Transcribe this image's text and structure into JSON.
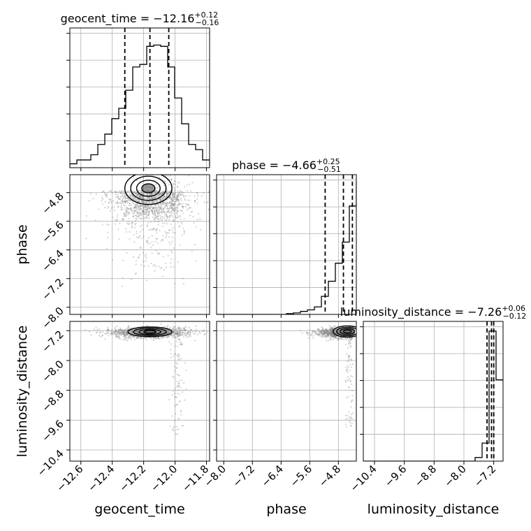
{
  "chart_data": {
    "type": "corner",
    "colors": {
      "ink": "#000000",
      "grid": "#b0b0b0",
      "points": "#808080"
    },
    "parameters": [
      {
        "name": "geocent_time",
        "label": "geocent_time",
        "range": [
          -12.67,
          -11.78
        ],
        "ticks": [
          -12.6,
          -12.4,
          -12.2,
          -12.0,
          -11.8
        ],
        "tick_labels": [
          "−12.6",
          "−12.4",
          "−12.2",
          "−12.0",
          "−11.8"
        ],
        "quantiles": [
          -12.32,
          -12.16,
          -12.04
        ]
      },
      {
        "name": "phase",
        "label": "phase",
        "range": [
          -8.2,
          -4.3
        ],
        "ticks": [
          -8.0,
          -7.2,
          -6.4,
          -5.6,
          -4.8
        ],
        "tick_labels": [
          "−8.0",
          "−7.2",
          "−6.4",
          "−5.6",
          "−4.8"
        ],
        "quantiles": [
          -5.17,
          -4.66,
          -4.41
        ]
      },
      {
        "name": "luminosity_distance",
        "label": "luminosity_distance",
        "range": [
          -10.7,
          -6.95
        ],
        "ticks": [
          -10.4,
          -9.6,
          -8.8,
          -8.0,
          -7.2
        ],
        "tick_labels": [
          "−10.4",
          "−9.6",
          "−8.8",
          "−8.0",
          "−7.2"
        ],
        "quantiles": [
          -7.38,
          -7.26,
          -7.2
        ]
      }
    ],
    "titles": [
      {
        "prefix": "geocent_time = −12.16",
        "sup": "+0.12",
        "sub": "−0.16"
      },
      {
        "prefix": "phase = −4.66",
        "sup": "+0.25",
        "sub": "−0.51"
      },
      {
        "prefix": "luminosity_distance = −7.26",
        "sup": "+0.06",
        "sub": "−0.12"
      }
    ],
    "histograms": [
      {
        "edges_start": -12.67,
        "bin_width": 0.0445,
        "counts": [
          0.03,
          0.06,
          0.06,
          0.1,
          0.18,
          0.26,
          0.38,
          0.46,
          0.6,
          0.78,
          0.8,
          0.94,
          0.95,
          0.94,
          0.78,
          0.54,
          0.34,
          0.18,
          0.14,
          0.06,
          0.02
        ],
        "ymax": 1.05
      },
      {
        "edges_start": -8.2,
        "bin_width": 0.195,
        "counts": [
          0,
          0,
          0,
          0,
          0,
          0,
          0,
          0,
          0,
          0,
          0.005,
          0.01,
          0.02,
          0.03,
          0.05,
          0.12,
          0.22,
          0.34,
          0.48,
          0.72,
          0.88
        ],
        "ymax": 0.9
      },
      {
        "edges_start": -10.7,
        "bin_width": 0.1875,
        "counts": [
          0,
          0,
          0,
          0,
          0,
          0,
          0,
          0,
          0,
          0,
          0,
          0,
          0,
          0,
          0,
          0,
          0.02,
          0.1,
          0.72,
          0.45
        ],
        "ymax": 0.75
      }
    ],
    "grid": true
  }
}
